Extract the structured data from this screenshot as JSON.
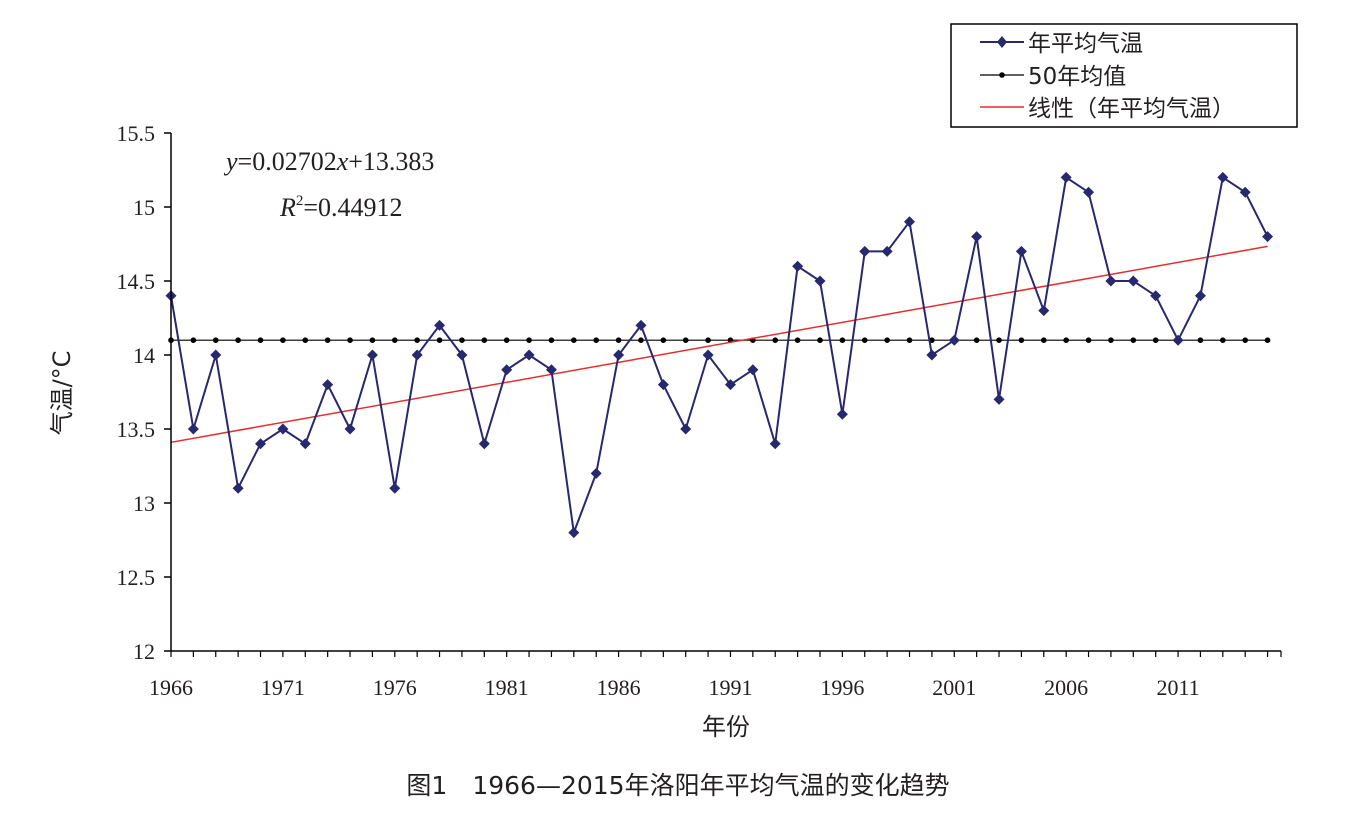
{
  "caption": "图1　1966—2015年洛阳年平均气温的变化趋势",
  "colors": {
    "series": "#28286e",
    "mean": "#000000",
    "trend": "#e52d2d",
    "axis": "#000000",
    "text": "#231f20"
  },
  "chart_data": {
    "type": "line",
    "title": "",
    "xlabel": "年份",
    "ylabel": "气温/°C",
    "ylim": [
      12,
      15.5
    ],
    "yticks": [
      "12",
      "12.5",
      "13",
      "13.5",
      "14",
      "14.5",
      "15",
      "15.5"
    ],
    "xticks": [
      "1966",
      "1971",
      "1976",
      "1981",
      "1986",
      "1991",
      "1996",
      "2001",
      "2006",
      "2011"
    ],
    "x": [
      1966,
      1967,
      1968,
      1969,
      1970,
      1971,
      1972,
      1973,
      1974,
      1975,
      1976,
      1977,
      1978,
      1979,
      1980,
      1981,
      1982,
      1983,
      1984,
      1985,
      1986,
      1987,
      1988,
      1989,
      1990,
      1991,
      1992,
      1993,
      1994,
      1995,
      1996,
      1997,
      1998,
      1999,
      2000,
      2001,
      2002,
      2003,
      2004,
      2005,
      2006,
      2007,
      2008,
      2009,
      2010,
      2011,
      2012,
      2013,
      2014,
      2015
    ],
    "series": [
      {
        "name": "年平均气温",
        "values": [
          14.4,
          13.5,
          14.0,
          13.1,
          13.4,
          13.5,
          13.4,
          13.8,
          13.5,
          14.0,
          13.1,
          14.0,
          14.2,
          14.0,
          13.4,
          13.9,
          14.0,
          13.9,
          12.8,
          13.2,
          14.0,
          14.2,
          13.8,
          13.5,
          14.0,
          13.8,
          13.9,
          13.4,
          14.6,
          14.5,
          13.6,
          14.7,
          14.7,
          14.9,
          14.0,
          14.1,
          14.8,
          13.7,
          14.7,
          14.3,
          15.2,
          15.1,
          14.5,
          14.5,
          14.4,
          14.1,
          14.4,
          15.2,
          15.1,
          14.8
        ]
      },
      {
        "name": "50年均值",
        "value": 14.1
      },
      {
        "name": "线性（年平均气温）",
        "slope": 0.02702,
        "intercept": 13.383
      }
    ],
    "equation": {
      "y_var": "y",
      "y_rest": "=0.02702",
      "x_var": "x",
      "x_rest": "+13.383",
      "r_var": "R",
      "r_sup": "2",
      "r_rest": "=0.44912"
    },
    "legend_position": "top-right",
    "grid": false
  }
}
